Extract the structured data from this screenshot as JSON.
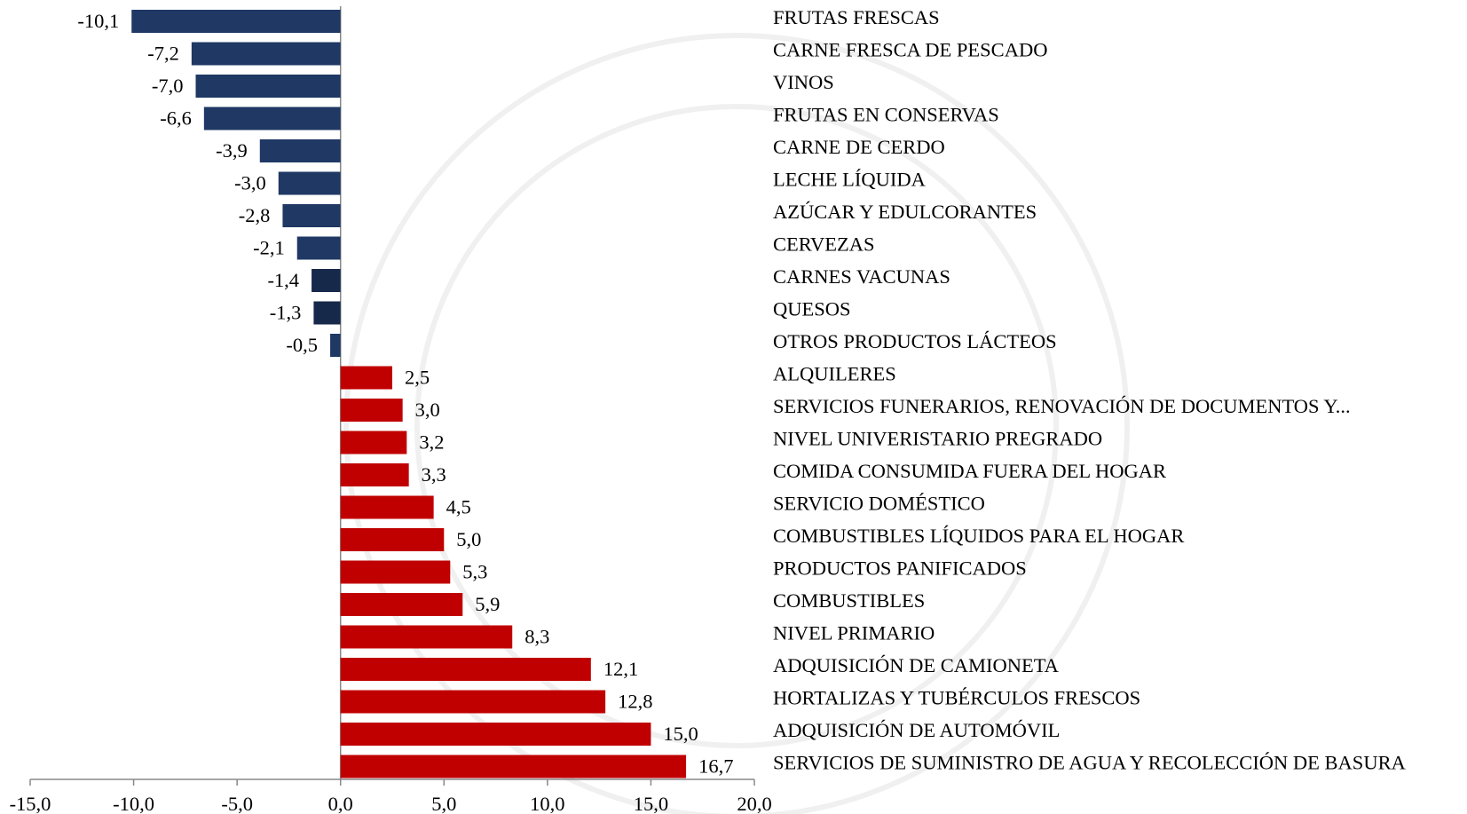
{
  "chart_data": {
    "type": "barh",
    "categories": [
      "FRUTAS FRESCAS",
      "CARNE FRESCA DE PESCADO",
      "VINOS",
      "FRUTAS EN CONSERVAS",
      "CARNE DE CERDO",
      "LECHE LÍQUIDA",
      "AZÚCAR Y EDULCORANTES",
      "CERVEZAS",
      "CARNES VACUNAS",
      "QUESOS",
      "OTROS PRODUCTOS LÁCTEOS",
      "ALQUILERES",
      "SERVICIOS FUNERARIOS, RENOVACIÓN DE DOCUMENTOS Y...",
      "NIVEL UNIVERISTARIO PREGRADO",
      "COMIDA CONSUMIDA FUERA DEL HOGAR",
      "SERVICIO DOMÉSTICO",
      "COMBUSTIBLES LÍQUIDOS PARA EL HOGAR",
      "PRODUCTOS PANIFICADOS",
      "COMBUSTIBLES",
      "NIVEL PRIMARIO",
      "ADQUISICIÓN DE CAMIONETA",
      "HORTALIZAS Y TUBÉRCULOS FRESCOS",
      "ADQUISICIÓN DE AUTOMÓVIL",
      "SERVICIOS DE SUMINISTRO DE AGUA Y RECOLECCIÓN DE BASURA"
    ],
    "values": [
      -10.1,
      -7.2,
      -7.0,
      -6.6,
      -3.9,
      -3.0,
      -2.8,
      -2.1,
      -1.4,
      -1.3,
      -0.5,
      2.5,
      3.0,
      3.2,
      3.3,
      4.5,
      5.0,
      5.3,
      5.9,
      8.3,
      12.1,
      12.8,
      15.0,
      16.7
    ],
    "value_labels": [
      "-10,1",
      "-7,2",
      "-7,0",
      "-6,6",
      "-3,9",
      "-3,0",
      "-2,8",
      "-2,1",
      "-1,4",
      "-1,3",
      "-0,5",
      "2,5",
      "3,0",
      "3,2",
      "3,3",
      "4,5",
      "5,0",
      "5,3",
      "5,9",
      "8,3",
      "12,1",
      "12,8",
      "15,0",
      "16,7"
    ],
    "colors": [
      "#1f3864",
      "#1f3864",
      "#1f3864",
      "#1f3864",
      "#1f3864",
      "#1f3864",
      "#1f3864",
      "#1f3864",
      "#17294a",
      "#17294a",
      "#1f3864",
      "#c00000",
      "#c00000",
      "#c00000",
      "#c00000",
      "#c00000",
      "#c00000",
      "#c00000",
      "#c00000",
      "#c00000",
      "#c00000",
      "#c00000",
      "#c00000",
      "#c00000"
    ],
    "xlim": [
      -15,
      20
    ],
    "xticks": [
      {
        "value": -15,
        "label": "-15,0"
      },
      {
        "value": -10,
        "label": "-10,0"
      },
      {
        "value": -5,
        "label": "-5,0"
      },
      {
        "value": 0,
        "label": "0,0"
      },
      {
        "value": 5,
        "label": "5,0"
      },
      {
        "value": 10,
        "label": "10,0"
      },
      {
        "value": 15,
        "label": "15,0"
      },
      {
        "value": 20,
        "label": "20,0"
      }
    ]
  }
}
